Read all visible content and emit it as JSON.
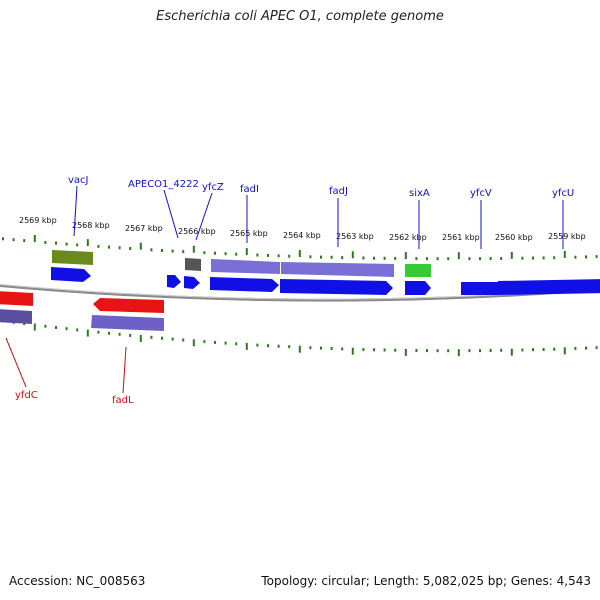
{
  "title": "Escherichia coli APEC O1, complete genome",
  "accession_text": "Accession: NC_008563",
  "stats_text": "Topology: circular; Length: 5,082,025 bp; Genes: 4,543",
  "colors": {
    "forward_gene": "#1010e6",
    "forward_cds": "#7a6fd6",
    "reverse_gene": "#e81414",
    "reverse_cds": "#6f60c8",
    "rna": "#33cc33",
    "olive": "#6a8a1e",
    "pseudo": "#555555",
    "tick": "#2d7a1e",
    "backbone": "#888888",
    "forward_label": "#1010cc",
    "reverse_label": "#cc1010"
  },
  "scale_labels": [
    "2569 kbp",
    "2568 kbp",
    "2567 kbp",
    "2566 kbp",
    "2565 kbp",
    "2564 kbp",
    "2563 kbp",
    "2562 kbp",
    "2561 kbp",
    "2560 kbp",
    "2559 kbp"
  ],
  "forward_gene_labels": [
    "vacJ",
    "APECO1_4222",
    "yfcZ",
    "fadI",
    "fadJ",
    "sixA",
    "yfcV",
    "yfcU"
  ],
  "reverse_gene_labels": [
    "yfdC",
    "fadL"
  ]
}
